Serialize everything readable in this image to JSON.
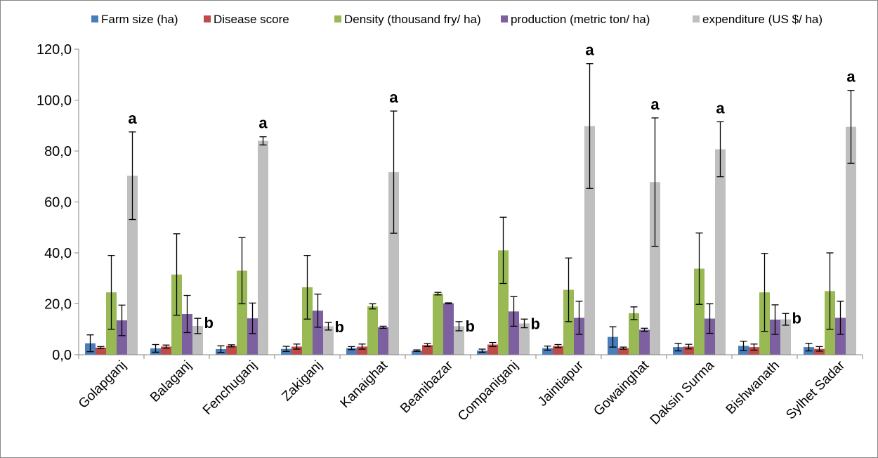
{
  "chart_data": {
    "type": "bar",
    "ylim": [
      0,
      120
    ],
    "yticks": [
      "0,0",
      "20,0",
      "40,0",
      "60,0",
      "80,0",
      "100,0",
      "120,0"
    ],
    "legend_position": "top",
    "grid": false,
    "categories": [
      "Golapganj",
      "Balaganj",
      "Fenchuganj",
      "Zakiganj",
      "Kanaighat",
      "Beanibazar",
      "Companiganj",
      "Jaintiapur",
      "Gowainghat",
      "Daksin Surma",
      "Bishwanath",
      "Sylhet Sadar"
    ],
    "series": [
      {
        "name": "Farm size (ha)",
        "color": "#4a7ebb",
        "values": [
          4.5,
          2.5,
          2.2,
          2.3,
          2.6,
          1.6,
          1.6,
          2.6,
          7.0,
          3.0,
          3.5,
          3.0
        ],
        "errors": [
          3.3,
          1.5,
          1.3,
          1.0,
          0.6,
          0.3,
          0.6,
          0.8,
          4.0,
          1.5,
          1.8,
          1.5
        ]
      },
      {
        "name": "Disease score",
        "color": "#be4b48",
        "values": [
          2.8,
          3.2,
          3.5,
          3.2,
          3.2,
          3.8,
          4.0,
          3.4,
          2.6,
          3.2,
          3.0,
          2.3
        ],
        "errors": [
          0.4,
          0.6,
          0.4,
          1.0,
          1.0,
          0.6,
          0.8,
          0.6,
          0.4,
          0.9,
          1.2,
          0.9
        ]
      },
      {
        "name": "Density (thousand fry/ ha)",
        "color": "#98b954",
        "values": [
          24.5,
          31.5,
          33.0,
          26.5,
          19.0,
          24.0,
          41.0,
          25.5,
          16.3,
          33.8,
          24.5,
          25.0
        ],
        "errors": [
          14.5,
          16.0,
          13.0,
          12.5,
          1.0,
          0.5,
          13.0,
          12.5,
          2.5,
          14.0,
          15.3,
          15.0
        ]
      },
      {
        "name": "production (metric ton/ ha)",
        "color": "#7d60a0",
        "values": [
          13.5,
          16.0,
          14.3,
          17.3,
          10.8,
          20.2,
          17.0,
          14.5,
          9.8,
          14.2,
          13.8,
          14.5
        ],
        "errors": [
          6.0,
          7.3,
          6.0,
          6.5,
          0.4,
          0.2,
          5.8,
          6.5,
          0.6,
          5.8,
          5.8,
          6.5
        ]
      },
      {
        "name": "expenditure (US $/ ha)",
        "color": "#bfbfbf",
        "values": [
          70.3,
          11.3,
          84.0,
          11.2,
          71.7,
          11.2,
          12.3,
          89.8,
          67.8,
          80.7,
          13.9,
          89.5
        ],
        "errors": [
          17.2,
          3.0,
          1.6,
          1.5,
          24.0,
          1.8,
          1.7,
          24.5,
          25.2,
          10.8,
          2.3,
          14.3
        ]
      }
    ],
    "significance_labels": [
      "a",
      "b",
      "a",
      "b",
      "a",
      "b",
      "b",
      "a",
      "a",
      "a",
      "b",
      "a"
    ]
  }
}
